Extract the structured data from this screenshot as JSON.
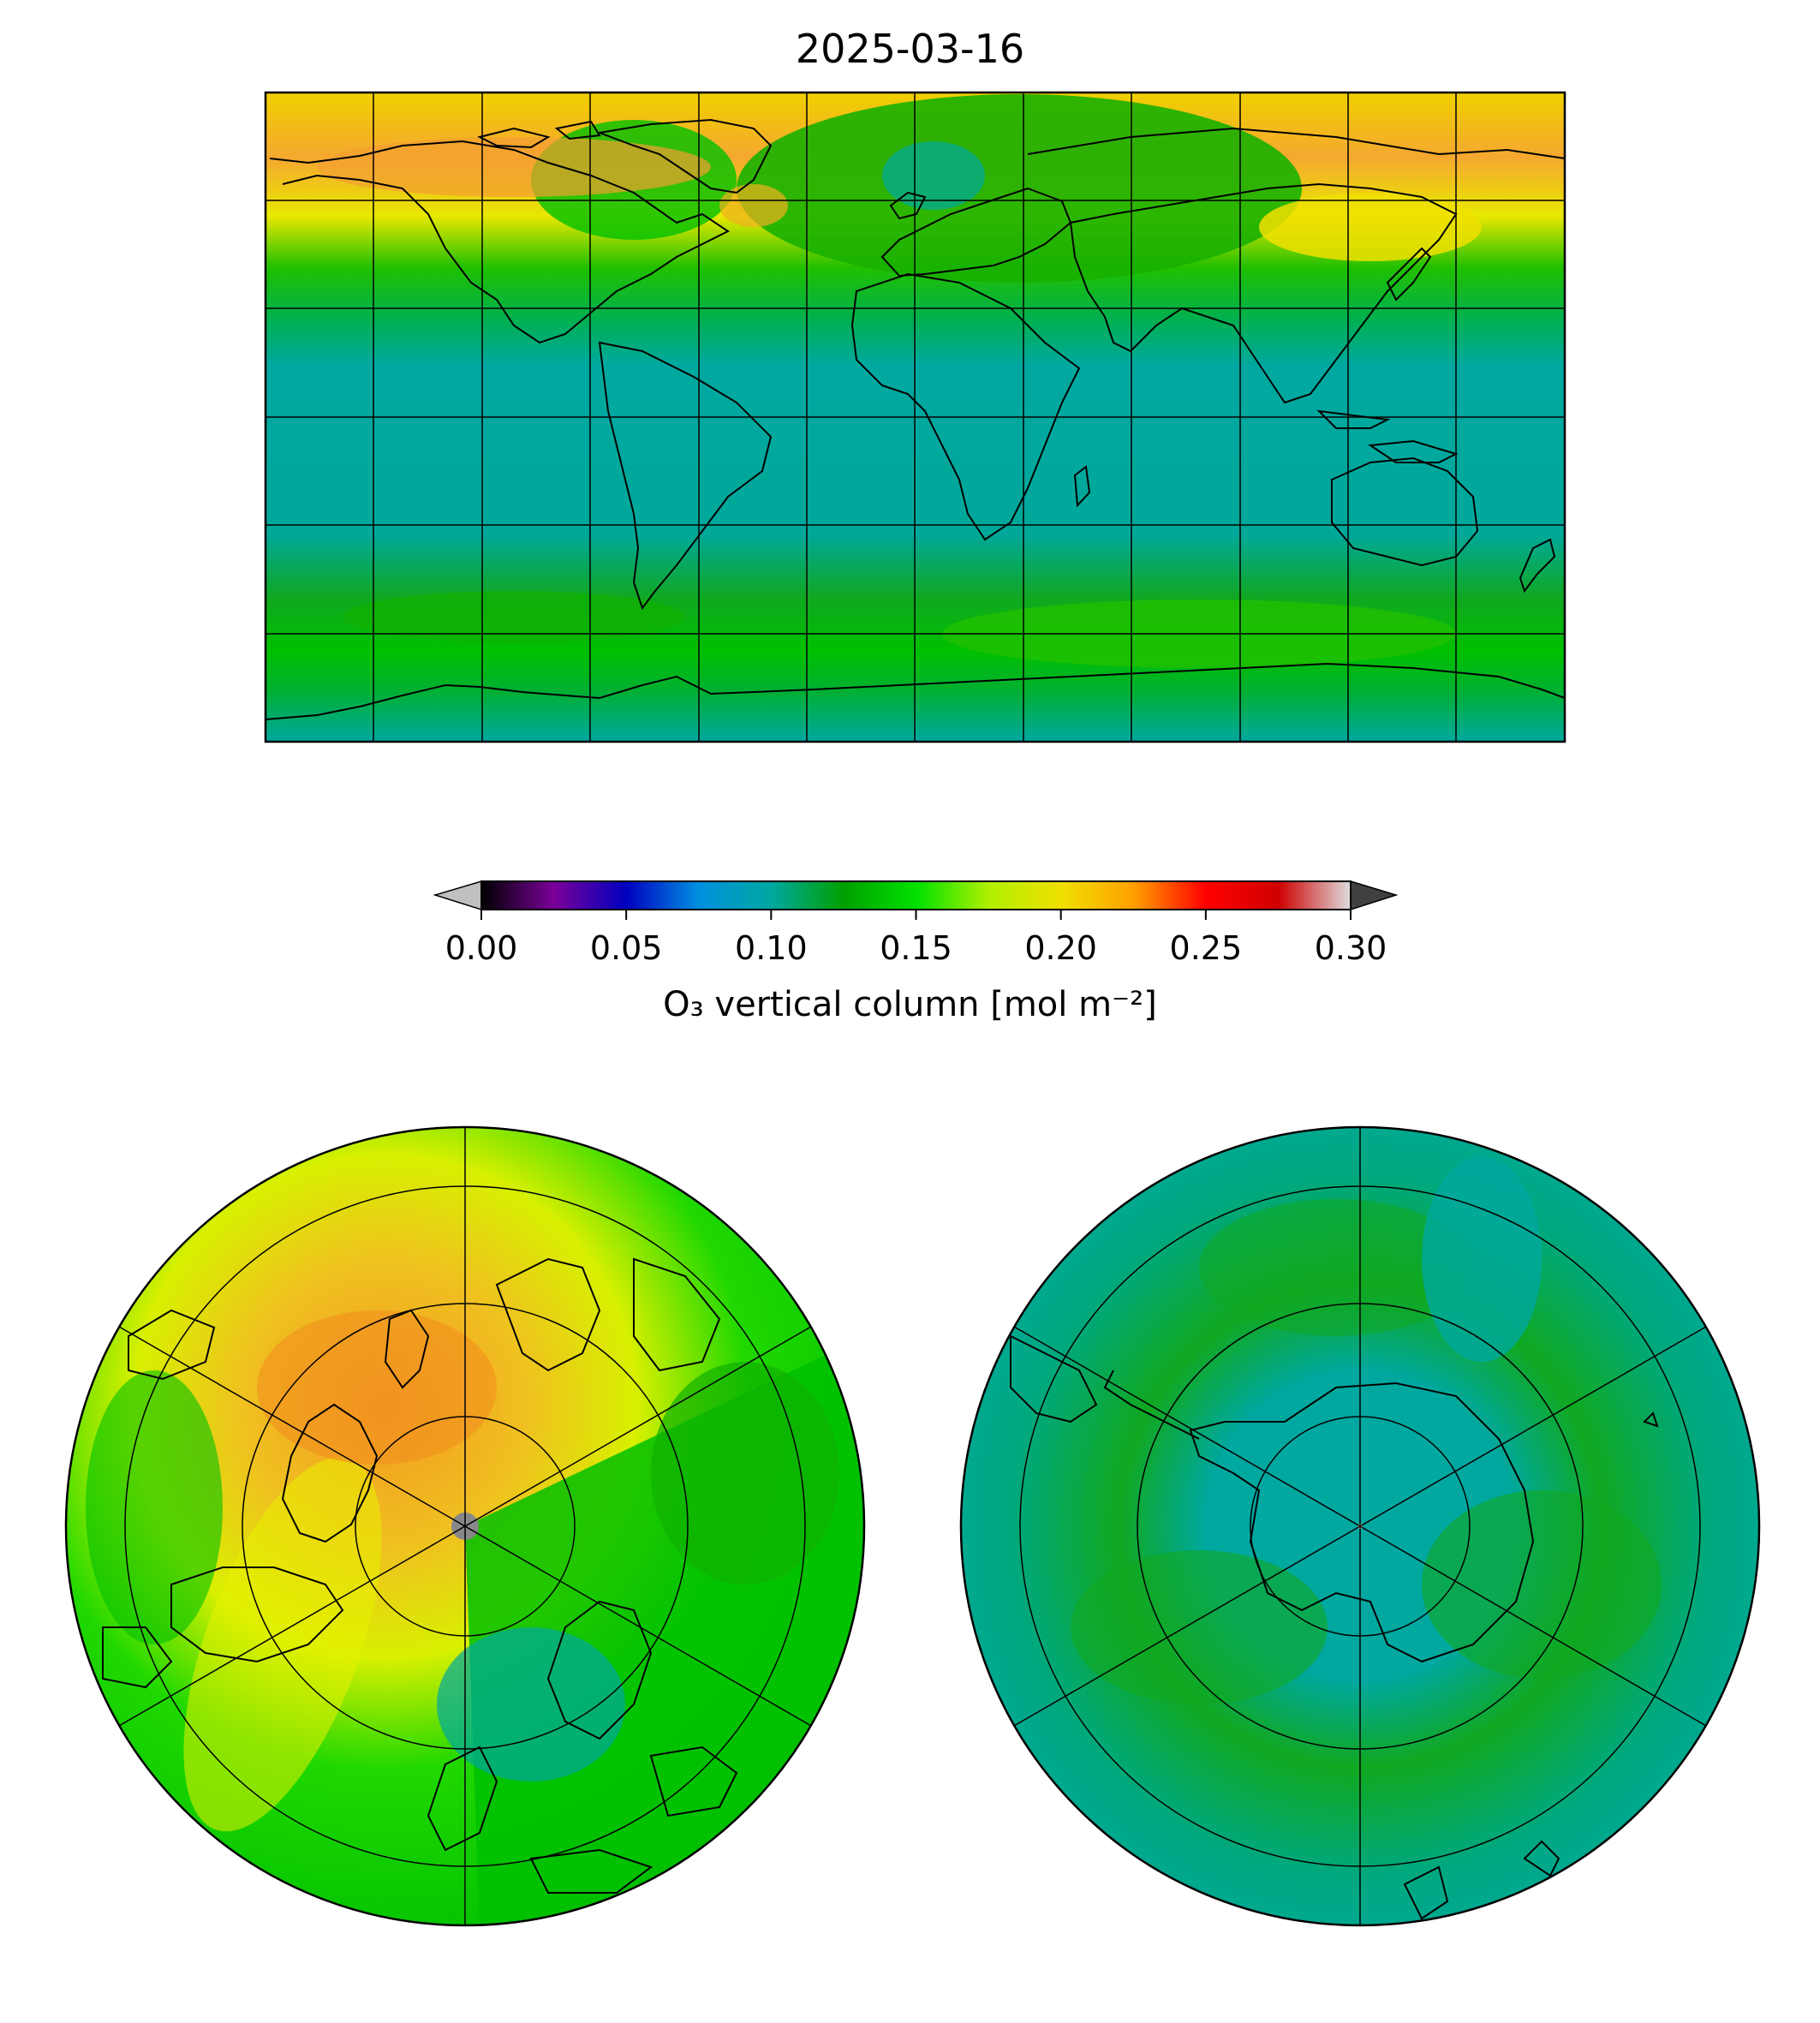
{
  "figure": {
    "title": "2025-03-16"
  },
  "colorbar": {
    "label": "O₃ vertical column [mol m⁻²]",
    "range": [
      0.0,
      0.3
    ],
    "ticks": [
      "0.00",
      "0.05",
      "0.10",
      "0.15",
      "0.20",
      "0.25",
      "0.30"
    ],
    "extend": "both",
    "colormap_stops": [
      "#000000",
      "#7a0099",
      "#0000c0",
      "#0090e0",
      "#00a8a0",
      "#00a000",
      "#00e000",
      "#b0f000",
      "#f0e000",
      "#ffa000",
      "#ff0000",
      "#d00000",
      "#dddddd"
    ],
    "under_color": "#c0c0c0",
    "over_color": "#404040"
  },
  "maps": [
    {
      "name": "global",
      "projection": "plate-carree",
      "description_colors": {
        "ocean_tropics": "#00aa9a",
        "midlat": "#00c000",
        "arctic_high": "#f5a020"
      }
    },
    {
      "name": "north-polar",
      "projection": "orthographic-north"
    },
    {
      "name": "south-polar",
      "projection": "orthographic-south"
    }
  ]
}
